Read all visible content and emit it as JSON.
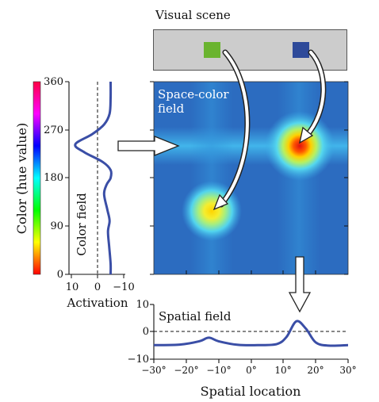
{
  "visual_scene": {
    "title": "Visual scene",
    "left_square_color": "#6ab42f",
    "right_square_color": "#2e4a9a"
  },
  "color_field": {
    "title": "Color field",
    "ylabel": "Color (hue value)",
    "xlabel": "Activation",
    "yticks": [
      "0",
      "90",
      "180",
      "270",
      "360"
    ],
    "xticks": [
      "10",
      "0",
      "−10"
    ]
  },
  "space_color_field": {
    "title_line1": "Space-color",
    "title_line2": "field"
  },
  "spatial_field": {
    "title": "Spatial field",
    "xlabel": "Spatial location",
    "yticks": [
      "10",
      "0",
      "−10"
    ],
    "xticks": [
      "−30°",
      "−20°",
      "−10°",
      "0°",
      "10°",
      "20°",
      "30°"
    ]
  },
  "chart_data": [
    {
      "type": "line",
      "name": "color-field-activation",
      "ylabel": "Color (hue value)",
      "xlabel": "Activation",
      "ylim": [
        0,
        360
      ],
      "xlim": [
        10,
        -10
      ],
      "points": [
        [
          -5.0,
          360
        ],
        [
          -5.0,
          330
        ],
        [
          -4.6,
          300
        ],
        [
          -2.5,
          280
        ],
        [
          2.0,
          262
        ],
        [
          8.5,
          243
        ],
        [
          5.0,
          228
        ],
        [
          -2.0,
          210
        ],
        [
          -5.0,
          195
        ],
        [
          -5.0,
          180
        ],
        [
          -3.5,
          168
        ],
        [
          -2.5,
          150
        ],
        [
          -3.8,
          120
        ],
        [
          -4.6,
          100
        ],
        [
          -4.0,
          80
        ],
        [
          -4.5,
          50
        ],
        [
          -5.0,
          20
        ],
        [
          -5.0,
          0
        ]
      ]
    },
    {
      "type": "line",
      "name": "spatial-field-activation",
      "xlabel": "Spatial location",
      "xlim": [
        -30,
        30
      ],
      "ylim": [
        -10,
        10
      ],
      "points": [
        [
          -30,
          -5.0
        ],
        [
          -22,
          -4.8
        ],
        [
          -16,
          -3.6
        ],
        [
          -13,
          -2.3
        ],
        [
          -10,
          -3.6
        ],
        [
          -4,
          -4.9
        ],
        [
          2,
          -5.0
        ],
        [
          8,
          -4.6
        ],
        [
          11,
          -2.0
        ],
        [
          14,
          3.7
        ],
        [
          17,
          1.0
        ],
        [
          20,
          -4.0
        ],
        [
          24,
          -5.2
        ],
        [
          30,
          -5.0
        ]
      ]
    },
    {
      "type": "heatmap",
      "name": "space-color-field",
      "xlim": [
        -30,
        30
      ],
      "ylim": [
        0,
        360
      ],
      "peaks": [
        {
          "x": -13,
          "hue": 120,
          "amplitude": 0.75,
          "color": "#ffee22"
        },
        {
          "x": 14,
          "hue": 240,
          "amplitude": 1.0,
          "color": "#ee2222"
        }
      ]
    }
  ]
}
